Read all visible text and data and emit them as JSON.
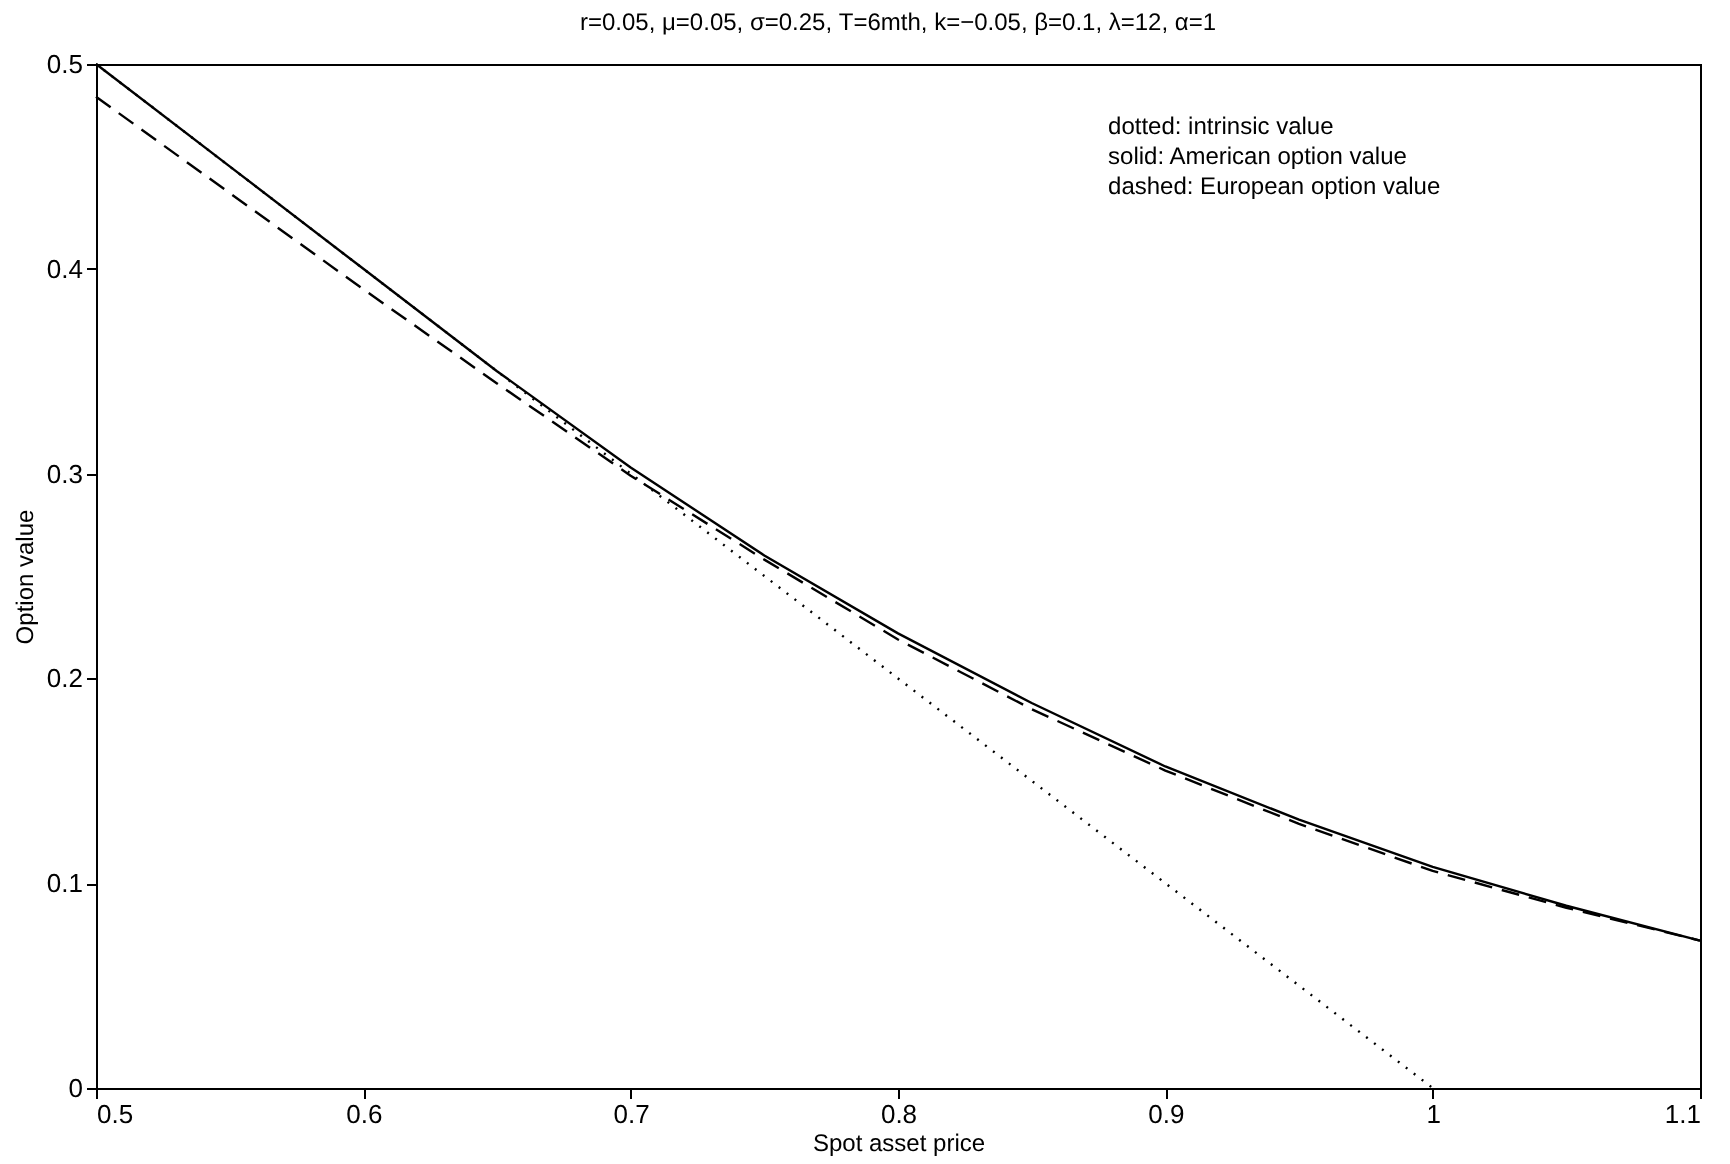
{
  "chart_data": {
    "type": "line",
    "title": "r=0.05, μ=0.05, σ=0.25, T=6mth, k=−0.05, β=0.1, λ=12, α=1",
    "xlabel": "Spot asset price",
    "ylabel": "Option value",
    "xlim": [
      0.5,
      1.1
    ],
    "xticks": [
      0.5,
      0.6,
      0.7,
      0.8,
      0.9,
      1,
      1.1
    ],
    "ylim": [
      0,
      0.5
    ],
    "yticks": [
      0,
      0.1,
      0.2,
      0.3,
      0.4,
      0.5
    ],
    "grid": false,
    "marker": "none",
    "annotations": [
      "dotted: intrinsic value",
      "solid: American option value",
      "dashed: European option value"
    ],
    "series": [
      {
        "color": "#000000",
        "line_style": "dotted",
        "x": [
          0.5,
          1.0
        ],
        "values": [
          0.5,
          0
        ]
      },
      {
        "color": "#000000",
        "line_style": "solid",
        "x": [
          0.5,
          0.55,
          0.6,
          0.65,
          0.7,
          0.75,
          0.8,
          0.85,
          0.9,
          0.95,
          1.0,
          1.05,
          1.1
        ],
        "values": [
          0.5,
          0.45,
          0.4,
          0.35,
          0.303,
          0.26,
          0.222,
          0.188,
          0.157,
          0.131,
          0.108,
          0.089,
          0.072
        ]
      },
      {
        "color": "#000000",
        "line_style": "dashed",
        "x": [
          0.5,
          0.55,
          0.6,
          0.65,
          0.7,
          0.75,
          0.8,
          0.85,
          0.9,
          0.95,
          1.0,
          1.05,
          1.1
        ],
        "values": [
          0.484,
          0.437,
          0.39,
          0.344,
          0.299,
          0.258,
          0.219,
          0.185,
          0.155,
          0.129,
          0.106,
          0.088,
          0.072
        ]
      }
    ]
  }
}
